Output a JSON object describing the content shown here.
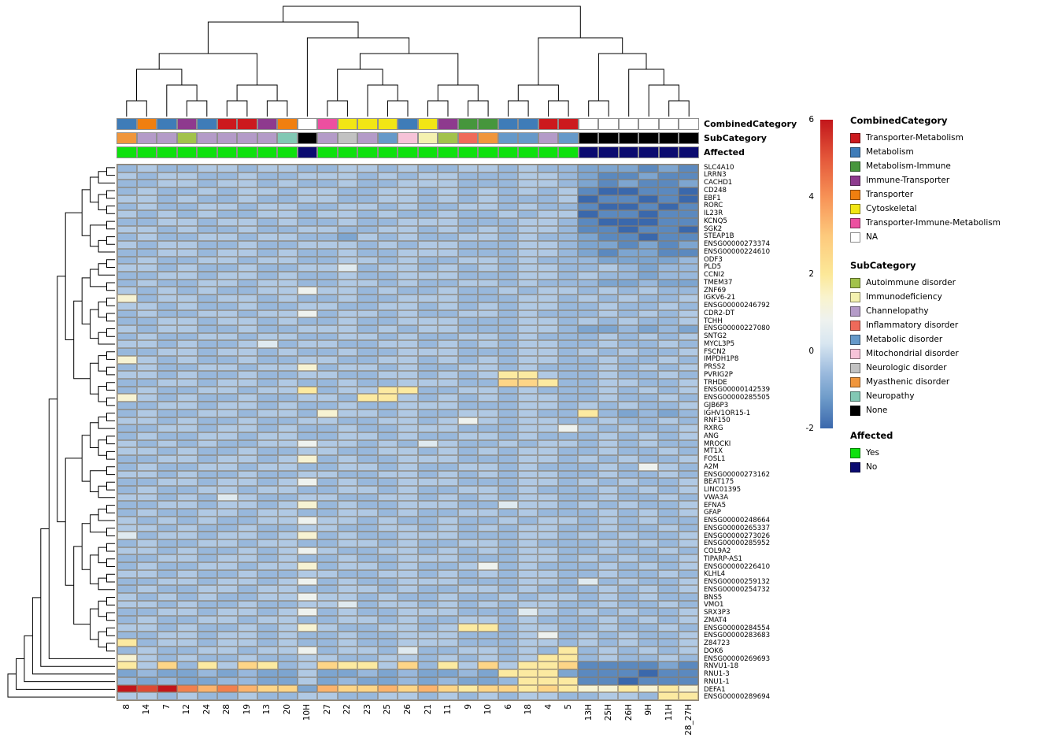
{
  "chart_data": {
    "type": "heatmap",
    "layout": {
      "column_dendrogram": "top",
      "row_dendrogram": "left",
      "legend_position": "right",
      "grid": true,
      "row_dendrogram_topology": "approximate-generated"
    },
    "columns": [
      "8",
      "14",
      "7",
      "12",
      "24",
      "28",
      "19",
      "13",
      "20",
      "10H",
      "27",
      "22",
      "23",
      "25",
      "26",
      "21",
      "11",
      "9",
      "10",
      "6",
      "18",
      "4",
      "5",
      "13H",
      "25H",
      "26H",
      "9H",
      "11H",
      "28_27H"
    ],
    "rows": [
      "SLC4A10",
      "LRRN3",
      "CACHD1",
      "CD248",
      "EBF1",
      "RORC",
      "IL23R",
      "KCNQ5",
      "SGK2",
      "STEAP1B",
      "ENSG00000273374",
      "ENSG00000224610",
      "ODF3",
      "PLD5",
      "CCNI2",
      "TMEM37",
      "ZNF69",
      "IGKV6-21",
      "ENSG00000246792",
      "CDR2-DT",
      "TCHH",
      "ENSG00000227080",
      "SNTG2",
      "MYCL3P5",
      "FSCN2",
      "IMPDH1P8",
      "PRSS2",
      "PVRIG2P",
      "TRHDE",
      "ENSG00000142539",
      "ENSG00000285505",
      "GJB6P3",
      "IGHV1OR15-1",
      "RNF150",
      "RXRG",
      "ANG",
      "MROCKI",
      "MT1X",
      "FOSL1",
      "A2M",
      "ENSG00000273162",
      "BEAT175",
      "LINC01395",
      "VWA3A",
      "EFNA5",
      "GFAP",
      "ENSG00000248664",
      "ENSG00000265337",
      "ENSG00000273026",
      "ENSG00000285952",
      "COL9A2",
      "TIPARP-AS1",
      "ENSG00000226410",
      "KLHL4",
      "ENSG00000259132",
      "ENSG00000254732",
      "BNS5",
      "VMO1",
      "SRX3P3",
      "ZMAT4",
      "ENSG00000284554",
      "ENSG00000283683",
      "Z84723",
      "DOK6",
      "ENSG00000269693",
      "RNVU1-18",
      "RNU1-3",
      "RNU1-1",
      "DEFA1",
      "ENSG00000289694"
    ],
    "value_encoding": {
      "a": -2,
      "b": -1.5,
      "c": -1,
      "d": -0.6,
      "e": -0.3,
      "f": 0,
      "g": 0.4,
      "h": 0.8,
      "i": 1.3,
      "j": 1.9,
      "k": 2.6,
      "l": 3.4,
      "m": 4.3,
      "n": 5.2,
      "o": 6
    },
    "matrix": [
      "dedde edeed deede ddeed eddcc cbcb",
      "edeed dedde eeded eeddd eedcb bcbb",
      "ddeed eeded dedde eeddd eedcb cbbc",
      "dedde deede eddee deded edeba abba",
      "eeded dedde eddee deded ddeab baba",
      "dedde edeed deede ddeed eddba abab",
      "edede ddeed eeded dedde deeab babb",
      "ddeed eeded dedde eeddd eedba aabb",
      "eeded dedde eddee deded eedbb abba",
      "dedde edeed dcede ddeed eddcb babb",
      "edeed dedde eeded eeddd eedcc bcbc",
      "ddeed eeded dedde eeddd eedcb ccbb",
      "dedde edeed deede ddeed edddc cccd",
      "eeded dedde egdee deded eedde dcdd",
      "ddeed eeded dedde eeddd eeded dcdd",
      "dedde edeed deede ddeed edddc cdcc",
      "edede ddeeh eeded dedde deede dedd",
      "ideed eeded dedde eeddd eeded edde",
      "eeded dedde eddee deded eedde dded",
      "dedde edeeh deede ddeed eddde dede",
      "ddeed eeded dedde eeddd eeded edde",
      "edeed dedde eeded eeddd eedcc dcdc",
      "dedde edeed deede ddeed eddde dede",
      "eeded degde eddee deded eedde dded",
      "ddeed eeded dedde eeddd eeded edde",
      "ieded dedde eddee deded eedde dded",
      "dedde edeei deede ddeed eddde dede",
      "eeded dedde eddee dedej jedde dded",
      "ddeed eeded dedde eeddk kjdde edde",
      "dedde edeej deejj ddeed eddde dede",
      "ieded dedde edjje deded eedde dded",
      "ddeed eeded dedde eeddd eeded edde",
      "dedde edeed ieede ddeed eddjd cdcd",
      "eeded dedde eddee dehed eedde dded",
      "ddeed eeded dedde eeddd eehed edde",
      "dedde edeed deede ddeed eddde dede",
      "edede ddeeh eeded gedde deede dedd",
      "eeded dedde eddee deded eedde dded",
      "ddeed eedei dedde eeddd eeded edde",
      "dedde edeed deede ddeed eddde dhed",
      "eeded dedde eddee deded eedde dded",
      "ddeed eedeh dedde eeddd eeded edde",
      "dedde edeed deede ddeed eddde dede",
      "eeded gedde eddee deded eedde dded",
      "ddeed eedei dedde eeddg eeded edde",
      "dedde edeed deede ddeed eddde dede",
      "edede ddeeh eeded dedde deede dedd",
      "eeded dedde eddee deded eedde dded",
      "gdeed eedei dedde eeddd eeded edde",
      "dedde edeed deede ddeed eddde dede",
      "eeded dedeh eddee deded eedde dded",
      "ddeed eeded dedde eeddd eeded edde",
      "dedde edeei deede ddehd eddde dede",
      "eeded dedde eddee deded eedde dded",
      "ddeed eedeh dedde eeddd eedgd edde",
      "dedde edeed deede ddeed eddde dede",
      "edede ddeeh eeded dedde deede dedd",
      "eeded dedde egdee deded eedde dded",
      "ddeed eedeh dedde eeddd geded edde",
      "dedde edeed deede ddeed eddde dede",
      "eeded dedei eddee dejjd eedde dded",
      "ddeed eeded dedde eeddd ehded edde",
      "jdeed eeded dedde eeddd eeded edde",
      "dedde edeeh deedg ddeed edjde dede",
      "ieded dedde eddee deded ejjde dded",
      "jekdj ekjde kjjek djeke jjkbb bbcb",
      "cdccd cdcce ccdcd ccdcj jjcbb babb",
      "dcdcc ddcce cdccd cdccd jjjbb abbb",
      "onoml mlkkc lkklk lkjkk jkjii jiji",
      "eeded dedde eddee deded eedde edjj"
    ],
    "colorscale": {
      "domain": [
        -2,
        6
      ],
      "ticks": [
        6,
        4,
        2,
        0,
        -2
      ],
      "stops": [
        [
          -2,
          "#3a68ac"
        ],
        [
          -1.2,
          "#6f9cca"
        ],
        [
          -0.6,
          "#98b8dc"
        ],
        [
          -0.2,
          "#b8cfe7"
        ],
        [
          0.2,
          "#d8e6f0"
        ],
        [
          0.8,
          "#eef2ef"
        ],
        [
          1.4,
          "#f9f3cd"
        ],
        [
          2,
          "#fce898"
        ],
        [
          3,
          "#fdc97c"
        ],
        [
          4,
          "#f79256"
        ],
        [
          5,
          "#e4573a"
        ],
        [
          6,
          "#c2161b"
        ]
      ]
    },
    "column_annotations": {
      "CombinedCategory": [
        "Metabolism",
        "Transporter",
        "Metabolism",
        "Immune-Transporter",
        "Metabolism",
        "Transporter-Metabolism",
        "Transporter-Metabolism",
        "Immune-Transporter",
        "Transporter",
        "NA",
        "Transporter-Immune-Metabolism",
        "Cytoskeletal",
        "Cytoskeletal",
        "Cytoskeletal",
        "Metabolism",
        "Cytoskeletal",
        "Immune-Transporter",
        "Metabolism-Immune",
        "Metabolism-Immune",
        "Metabolism",
        "Metabolism",
        "Transporter-Metabolism",
        "Transporter-Metabolism",
        "NA",
        "NA",
        "NA",
        "NA",
        "NA",
        "NA"
      ],
      "SubCategory": [
        "Myasthenic disorder",
        "Channelopathy",
        "Channelopathy",
        "Autoimmune disorder",
        "Channelopathy",
        "Channelopathy",
        "Channelopathy",
        "Channelopathy",
        "Neuropathy",
        "None",
        "Channelopathy",
        "Neurologic disorder",
        "Channelopathy",
        "Metabolic disorder",
        "Mitochondrial disorder",
        "Immunodeficiency",
        "Autoimmune disorder",
        "Inflammatory disorder",
        "Myasthenic disorder",
        "Metabolic disorder",
        "Metabolic disorder",
        "Channelopathy",
        "Metabolic disorder",
        "None",
        "None",
        "None",
        "None",
        "None",
        "None"
      ],
      "Affected": [
        "Yes",
        "Yes",
        "Yes",
        "Yes",
        "Yes",
        "Yes",
        "Yes",
        "Yes",
        "Yes",
        "No",
        "Yes",
        "Yes",
        "Yes",
        "Yes",
        "Yes",
        "Yes",
        "Yes",
        "Yes",
        "Yes",
        "Yes",
        "Yes",
        "Yes",
        "Yes",
        "No",
        "No",
        "No",
        "No",
        "No",
        "No"
      ]
    },
    "legends": {
      "combined_category": {
        "title": "CombinedCategory",
        "items": [
          {
            "label": "Transporter-Metabolism",
            "color": "#cc1a1e"
          },
          {
            "label": "Metabolism",
            "color": "#3f7cb8"
          },
          {
            "label": "Metabolism-Immune",
            "color": "#46963c"
          },
          {
            "label": "Immune-Transporter",
            "color": "#8e3a8e"
          },
          {
            "label": "Transporter",
            "color": "#f07f10"
          },
          {
            "label": "Cytoskeletal",
            "color": "#f2e614"
          },
          {
            "label": "Transporter-Immune-Metabolism",
            "color": "#ec4fa0"
          },
          {
            "label": "NA",
            "color": "#ffffff"
          }
        ]
      },
      "sub_category": {
        "title": "SubCategory",
        "items": [
          {
            "label": "Autoimmune disorder",
            "color": "#a2c24b"
          },
          {
            "label": "Immunodeficiency",
            "color": "#f4f1b0"
          },
          {
            "label": "Channelopathy",
            "color": "#b49bc8"
          },
          {
            "label": "Inflammatory disorder",
            "color": "#ef6a5a"
          },
          {
            "label": "Metabolic disorder",
            "color": "#6699c9"
          },
          {
            "label": "Mitochondrial disorder",
            "color": "#f6c3d8"
          },
          {
            "label": "Neurologic disorder",
            "color": "#c2c2c2"
          },
          {
            "label": "Myasthenic disorder",
            "color": "#f0963c"
          },
          {
            "label": "Neuropathy",
            "color": "#82c8b4"
          },
          {
            "label": "None",
            "color": "#000000"
          }
        ]
      },
      "affected": {
        "title": "Affected",
        "items": [
          {
            "label": "Yes",
            "color": "#0ee10e"
          },
          {
            "label": "No",
            "color": "#0b0b70"
          }
        ]
      }
    },
    "col_dendrogram": [
      [
        [
          [
            [
              0,
              1
            ],
            [
              2,
              [
                3,
                4
              ]
            ]
          ],
          [
            [
              5,
              6
            ],
            [
              7,
              8
            ]
          ]
        ],
        [
          9,
          [
            [
              [
                10,
                11
              ],
              [
                12,
                [
                  13,
                  14
                ]
              ]
            ],
            [
              [
                15,
                16
              ],
              [
                17,
                18
              ]
            ]
          ]
        ]
      ],
      [
        [
          [
            19,
            20
          ],
          [
            21,
            22
          ]
        ],
        [
          [
            23,
            24
          ],
          [
            25,
            [
              26,
              [
                27,
                28
              ]
            ]
          ]
        ]
      ]
    ]
  }
}
